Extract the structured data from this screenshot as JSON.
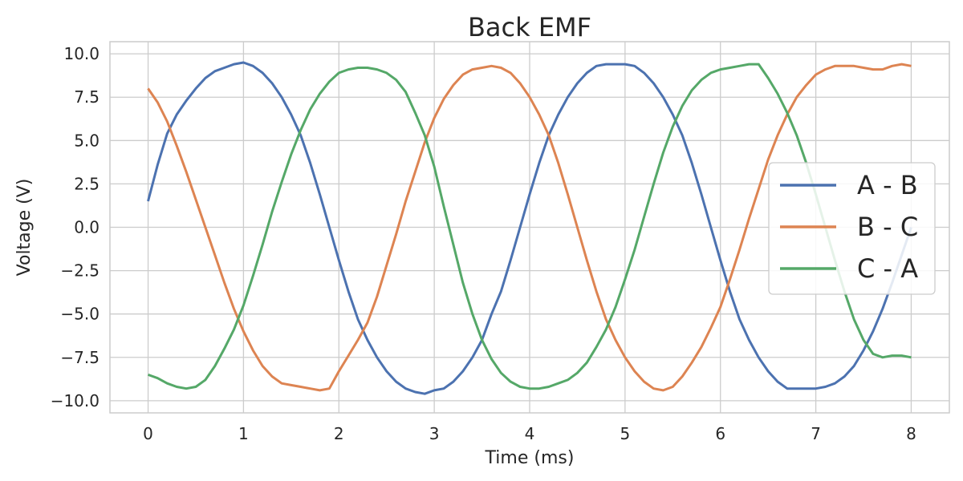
{
  "chart_data": {
    "type": "line",
    "title": "Back EMF",
    "xlabel": "Time (ms)",
    "ylabel": "Voltage (V)",
    "xlim": [
      -0.4,
      8.4
    ],
    "ylim": [
      -10.7,
      10.7
    ],
    "xticks": [
      0,
      1,
      2,
      3,
      4,
      5,
      6,
      7,
      8
    ],
    "xtick_labels": [
      "0",
      "1",
      "2",
      "3",
      "4",
      "5",
      "6",
      "7",
      "8"
    ],
    "yticks": [
      10.0,
      7.5,
      5.0,
      2.5,
      0.0,
      -2.5,
      -5.0,
      -7.5,
      -10.0
    ],
    "ytick_labels": [
      "10.0",
      "7.5",
      "5.0",
      "2.5",
      "0.0",
      "−2.5",
      "−5.0",
      "−7.5",
      "−10.0"
    ],
    "grid": true,
    "legend_position": "right",
    "series": [
      {
        "name": "A - B",
        "color": "#4c72b0",
        "x": [
          0,
          0.1,
          0.2,
          0.3,
          0.4,
          0.5,
          0.6,
          0.7,
          0.8,
          0.9,
          1.0,
          1.1,
          1.2,
          1.3,
          1.4,
          1.5,
          1.6,
          1.7,
          1.8,
          1.9,
          2.0,
          2.1,
          2.2,
          2.3,
          2.4,
          2.5,
          2.6,
          2.7,
          2.8,
          2.9,
          3.0,
          3.1,
          3.2,
          3.3,
          3.4,
          3.5,
          3.6,
          3.7,
          3.8,
          3.9,
          4.0,
          4.1,
          4.2,
          4.3,
          4.4,
          4.5,
          4.6,
          4.7,
          4.8,
          4.9,
          5.0,
          5.1,
          5.2,
          5.3,
          5.4,
          5.5,
          5.6,
          5.7,
          5.8,
          5.9,
          6.0,
          6.1,
          6.2,
          6.3,
          6.4,
          6.5,
          6.6,
          6.7,
          6.8,
          6.9,
          7.0,
          7.1,
          7.2,
          7.3,
          7.4,
          7.5,
          7.6,
          7.7,
          7.8,
          7.9,
          8.0
        ],
        "y": [
          1.5,
          3.6,
          5.4,
          6.5,
          7.3,
          8.0,
          8.6,
          9.0,
          9.2,
          9.4,
          9.5,
          9.3,
          8.9,
          8.3,
          7.5,
          6.5,
          5.3,
          3.7,
          1.9,
          0.0,
          -1.9,
          -3.7,
          -5.3,
          -6.5,
          -7.5,
          -8.3,
          -8.9,
          -9.3,
          -9.5,
          -9.6,
          -9.4,
          -9.3,
          -8.9,
          -8.3,
          -7.5,
          -6.5,
          -5.0,
          -3.7,
          -1.9,
          0.0,
          1.9,
          3.7,
          5.3,
          6.5,
          7.5,
          8.3,
          8.9,
          9.3,
          9.4,
          9.4,
          9.4,
          9.3,
          8.9,
          8.3,
          7.5,
          6.5,
          5.3,
          3.7,
          1.9,
          0.0,
          -1.9,
          -3.7,
          -5.3,
          -6.5,
          -7.5,
          -8.3,
          -8.9,
          -9.3,
          -9.3,
          -9.3,
          -9.3,
          -9.2,
          -9.0,
          -8.6,
          -8.0,
          -7.1,
          -6.0,
          -4.7,
          -3.2,
          -1.6,
          0.0
        ]
      },
      {
        "name": "B - C",
        "color": "#dd8452",
        "x": [
          0,
          0.1,
          0.2,
          0.3,
          0.4,
          0.5,
          0.6,
          0.7,
          0.8,
          0.9,
          1.0,
          1.1,
          1.2,
          1.3,
          1.4,
          1.5,
          1.6,
          1.7,
          1.8,
          1.9,
          2.0,
          2.1,
          2.2,
          2.3,
          2.4,
          2.5,
          2.6,
          2.7,
          2.8,
          2.9,
          3.0,
          3.1,
          3.2,
          3.3,
          3.4,
          3.5,
          3.6,
          3.7,
          3.8,
          3.9,
          4.0,
          4.1,
          4.2,
          4.3,
          4.4,
          4.5,
          4.6,
          4.7,
          4.8,
          4.9,
          5.0,
          5.1,
          5.2,
          5.3,
          5.4,
          5.5,
          5.6,
          5.7,
          5.8,
          5.9,
          6.0,
          6.1,
          6.2,
          6.3,
          6.4,
          6.5,
          6.6,
          6.7,
          6.8,
          6.9,
          7.0,
          7.1,
          7.2,
          7.3,
          7.4,
          7.5,
          7.6,
          7.7,
          7.8,
          7.9,
          8.0
        ],
        "y": [
          8.0,
          7.2,
          6.1,
          4.7,
          3.2,
          1.6,
          0.0,
          -1.6,
          -3.2,
          -4.7,
          -6.0,
          -7.1,
          -8.0,
          -8.6,
          -9.0,
          -9.1,
          -9.2,
          -9.3,
          -9.4,
          -9.3,
          -8.3,
          -7.4,
          -6.5,
          -5.5,
          -4.0,
          -2.2,
          -0.4,
          1.5,
          3.2,
          4.9,
          6.3,
          7.4,
          8.2,
          8.8,
          9.1,
          9.2,
          9.3,
          9.2,
          8.9,
          8.3,
          7.5,
          6.5,
          5.3,
          3.7,
          1.9,
          0.0,
          -1.9,
          -3.7,
          -5.3,
          -6.5,
          -7.5,
          -8.3,
          -8.9,
          -9.3,
          -9.4,
          -9.2,
          -8.6,
          -7.8,
          -6.9,
          -5.8,
          -4.6,
          -3.0,
          -1.3,
          0.5,
          2.2,
          3.9,
          5.3,
          6.5,
          7.5,
          8.2,
          8.8,
          9.1,
          9.3,
          9.3,
          9.3,
          9.2,
          9.1,
          9.1,
          9.3,
          9.4,
          9.3
        ]
      },
      {
        "name": "C - A",
        "color": "#55a868",
        "x": [
          0,
          0.1,
          0.2,
          0.3,
          0.4,
          0.5,
          0.6,
          0.7,
          0.8,
          0.9,
          1.0,
          1.1,
          1.2,
          1.3,
          1.4,
          1.5,
          1.6,
          1.7,
          1.8,
          1.9,
          2.0,
          2.1,
          2.2,
          2.3,
          2.4,
          2.5,
          2.6,
          2.7,
          2.8,
          2.9,
          3.0,
          3.1,
          3.2,
          3.3,
          3.4,
          3.5,
          3.6,
          3.7,
          3.8,
          3.9,
          4.0,
          4.1,
          4.2,
          4.3,
          4.4,
          4.5,
          4.6,
          4.7,
          4.8,
          4.9,
          5.0,
          5.1,
          5.2,
          5.3,
          5.4,
          5.5,
          5.6,
          5.7,
          5.8,
          5.9,
          6.0,
          6.1,
          6.2,
          6.3,
          6.4,
          6.5,
          6.6,
          6.7,
          6.8,
          6.9,
          7.0,
          7.1,
          7.2,
          7.3,
          7.4,
          7.5,
          7.6,
          7.7,
          7.8,
          7.9,
          8.0
        ],
        "y": [
          -8.5,
          -8.7,
          -9.0,
          -9.2,
          -9.3,
          -9.2,
          -8.8,
          -8.0,
          -7.0,
          -5.9,
          -4.5,
          -2.8,
          -1.0,
          0.9,
          2.6,
          4.2,
          5.6,
          6.8,
          7.7,
          8.4,
          8.9,
          9.1,
          9.2,
          9.2,
          9.1,
          8.9,
          8.5,
          7.8,
          6.6,
          5.3,
          3.5,
          1.2,
          -1.0,
          -3.2,
          -5.0,
          -6.5,
          -7.6,
          -8.4,
          -8.9,
          -9.2,
          -9.3,
          -9.3,
          -9.2,
          -9.0,
          -8.8,
          -8.4,
          -7.8,
          -6.9,
          -5.9,
          -4.6,
          -3.0,
          -1.3,
          0.6,
          2.5,
          4.3,
          5.8,
          7.0,
          7.9,
          8.5,
          8.9,
          9.1,
          9.2,
          9.3,
          9.4,
          9.4,
          8.6,
          7.7,
          6.6,
          5.3,
          3.7,
          1.9,
          0.0,
          -1.9,
          -3.7,
          -5.3,
          -6.5,
          -7.3,
          -7.5,
          -7.4,
          -7.4,
          -7.5
        ]
      }
    ]
  }
}
